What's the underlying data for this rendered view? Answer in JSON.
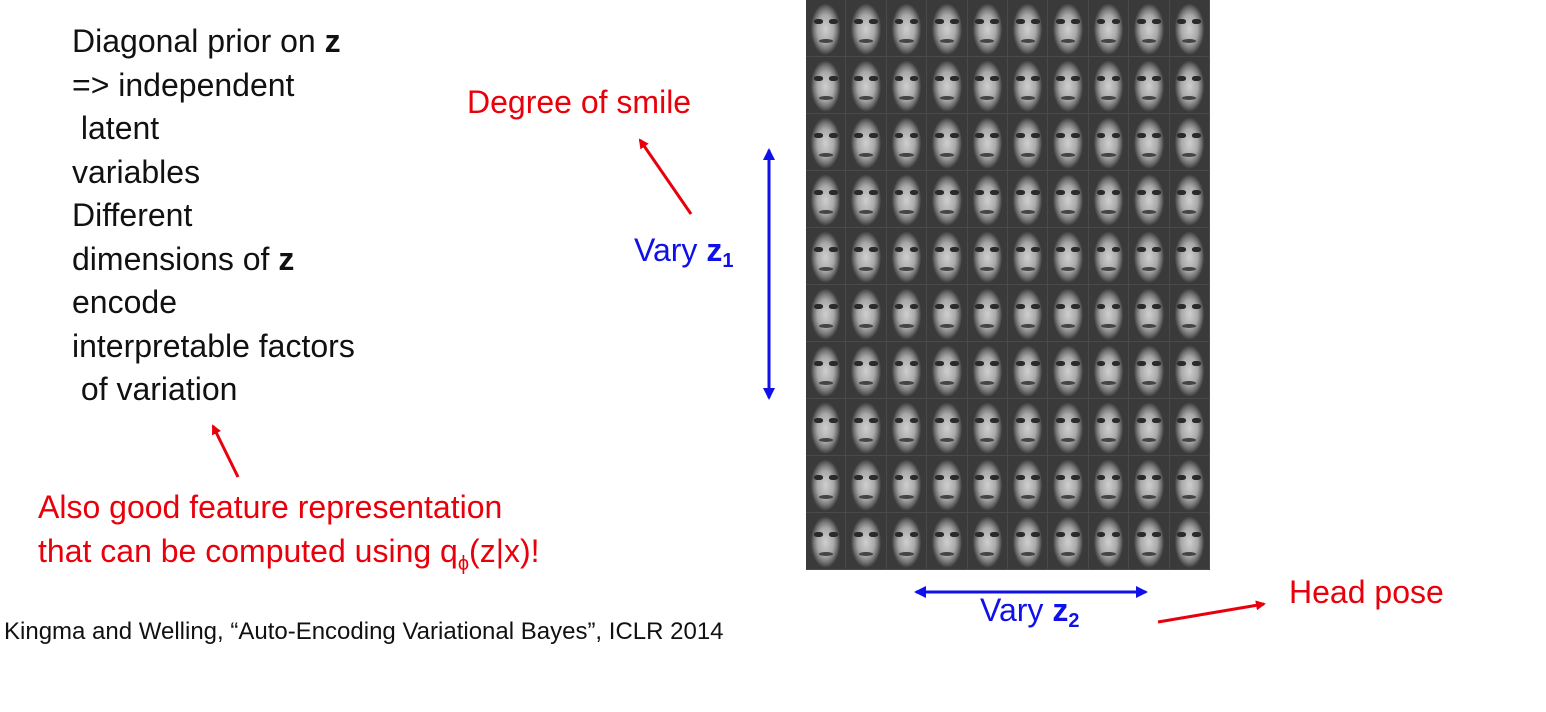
{
  "bullets": {
    "line1_text": "Diagonal prior on ",
    "line1_bold": "z",
    "line2": "=> independent",
    "line3": " latent",
    "line4": "variables",
    "line5": "Different",
    "line6_text": "dimensions of ",
    "line6_bold": "z",
    "line7": "encode",
    "line8": "interpretable factors",
    "line9": " of variation"
  },
  "annotations": {
    "smile": "Degree of smile",
    "vary1_text": "Vary ",
    "vary1_var": "z",
    "vary1_sub": "1",
    "vary2_text": "Vary ",
    "vary2_var": "z",
    "vary2_sub": "2",
    "head_pose": "Head pose",
    "feature_line1": "Also good feature representation",
    "feature_line2_pre": "that  can be computed using q",
    "feature_line2_sub": "ϕ",
    "feature_line2_post": "(z|x)!"
  },
  "citation": "Kingma and Welling, “Auto-Encoding Variational Bayes”, ICLR 2014",
  "figure": {
    "rows": 10,
    "cols": 10,
    "description_colors": {
      "red": "#e8000b",
      "blue": "#1010e8"
    }
  }
}
